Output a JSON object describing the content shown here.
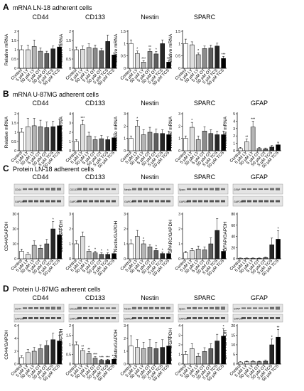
{
  "figure": {
    "colors": {
      "fills": [
        "#ffffff",
        "#dedede",
        "#b5b5b5",
        "#8c8c8c",
        "#5e5e5e",
        "#262626",
        "#000000"
      ],
      "stroke": "#000000",
      "blot_bg": "#e4e4e4",
      "blot_band": "#3a3a3a"
    }
  },
  "chart_data": [
    {
      "type": "bar",
      "panel": "A",
      "panel_label": "A",
      "panel_title": "mRNA LN-18 adherent cells",
      "title": "CD44",
      "ylabel": "Relative mRNA",
      "ylim": [
        0,
        2
      ],
      "yticks": [
        "0",
        "0.5",
        "1",
        "1.5",
        "2"
      ],
      "categories": [
        "Control",
        "5 µM LY",
        "50 µM LY",
        "5 µM OT",
        "50 µM OT",
        "5 µM TCS",
        "50 µM TCS"
      ],
      "values": [
        1.0,
        1.0,
        1.18,
        0.92,
        0.8,
        1.05,
        1.15
      ],
      "errors": [
        0.22,
        0.25,
        0.35,
        0.18,
        0.12,
        0.15,
        0.12
      ],
      "sig": [
        "",
        "",
        "",
        "",
        "",
        "",
        ""
      ]
    },
    {
      "type": "bar",
      "panel": "A",
      "title": "CD133",
      "ylabel": "Relative mRNA",
      "ylim": [
        0,
        2
      ],
      "yticks": [
        "0",
        "0.5",
        "1",
        "1.5",
        "2"
      ],
      "categories": [
        "Control",
        "5 µM LY",
        "50 µM LY",
        "5 µM OT",
        "50 µM OT",
        "5 µM TCS",
        "50 µM TCS"
      ],
      "values": [
        1.0,
        1.02,
        1.12,
        1.08,
        0.95,
        1.45,
        0.72
      ],
      "errors": [
        0.15,
        0.18,
        0.2,
        0.18,
        0.12,
        0.35,
        0.12
      ],
      "sig": [
        "",
        "",
        "",
        "",
        "",
        "",
        ""
      ]
    },
    {
      "type": "bar",
      "panel": "A",
      "title": "Nestin",
      "ylabel": "Relative mRNA",
      "ylim": [
        0,
        1.5
      ],
      "yticks": [
        "0",
        "0.5",
        "1",
        "1.5"
      ],
      "categories": [
        "Control",
        "5 µM LY",
        "50 µM LY",
        "5 µM OT",
        "50 µM OT",
        "5 µM TCS",
        "50 µM TCS"
      ],
      "values": [
        1.0,
        0.6,
        0.25,
        0.68,
        0.58,
        1.0,
        0.25
      ],
      "errors": [
        0.15,
        0.1,
        0.06,
        0.1,
        0.1,
        0.15,
        0.06
      ],
      "sig": [
        "",
        "*",
        "***",
        "**",
        "*",
        "",
        "***"
      ]
    },
    {
      "type": "bar",
      "panel": "A",
      "title": "SPARC",
      "ylabel": "Relative mRNA",
      "ylim": [
        0,
        1.5
      ],
      "yticks": [
        "0",
        "0.5",
        "1",
        "1.5"
      ],
      "categories": [
        "Control",
        "5 µM LY",
        "50 µM LY",
        "5 µM OT",
        "50 µM OT",
        "5 µM TCS",
        "50 µM TCS"
      ],
      "values": [
        1.0,
        0.95,
        0.55,
        0.8,
        0.82,
        0.9,
        0.4
      ],
      "errors": [
        0.18,
        0.12,
        0.08,
        0.1,
        0.12,
        0.12,
        0.08
      ],
      "sig": [
        "",
        "",
        "*",
        "",
        "",
        "",
        "***"
      ]
    },
    {
      "type": "bar",
      "panel": "B",
      "panel_label": "B",
      "panel_title": "mRNA U-87MG adherent cells",
      "title": "CD44",
      "ylabel": "Relative mRNA",
      "ylim": [
        0,
        2
      ],
      "yticks": [
        "0",
        "0.5",
        "1",
        "1.5",
        "2"
      ],
      "categories": [
        "Control",
        "5 µM LY",
        "50 µM LY",
        "5 µM OT",
        "50 µM OT",
        "5 µM TCS",
        "50 µM TCS"
      ],
      "values": [
        1.0,
        1.3,
        1.35,
        1.3,
        1.25,
        1.3,
        1.35
      ],
      "errors": [
        0.2,
        0.45,
        0.4,
        0.35,
        0.3,
        0.3,
        0.35
      ],
      "sig": [
        "",
        "",
        "",
        "",
        "",
        "",
        ""
      ]
    },
    {
      "type": "bar",
      "panel": "B",
      "title": "CD133",
      "ylabel": "Relative mRNA",
      "ylim": [
        0,
        4
      ],
      "yticks": [
        "0",
        "1",
        "2",
        "3",
        "4"
      ],
      "categories": [
        "Control",
        "5 µM LY",
        "50 µM LY",
        "5 µM OT",
        "50 µM OT",
        "5 µM TCS",
        "50 µM TCS"
      ],
      "values": [
        1.0,
        2.8,
        1.6,
        1.2,
        1.3,
        1.2,
        1.4
      ],
      "errors": [
        0.2,
        0.5,
        0.4,
        0.3,
        0.35,
        0.3,
        0.4
      ],
      "sig": [
        "",
        "***",
        "",
        "",
        "",
        "",
        ""
      ]
    },
    {
      "type": "bar",
      "panel": "B",
      "title": "Nestin",
      "ylabel": "Relative mRNA",
      "ylim": [
        0,
        3
      ],
      "yticks": [
        "0",
        "1",
        "2",
        "3"
      ],
      "categories": [
        "Control",
        "5 µM LY",
        "50 µM LY",
        "5 µM OT",
        "50 µM OT",
        "5 µM TCS",
        "50 µM TCS"
      ],
      "values": [
        1.0,
        2.0,
        1.3,
        1.5,
        1.4,
        1.4,
        1.3
      ],
      "errors": [
        0.2,
        0.45,
        0.4,
        0.4,
        0.35,
        0.3,
        0.3
      ],
      "sig": [
        "",
        "*",
        "",
        "",
        "",
        "",
        ""
      ]
    },
    {
      "type": "bar",
      "panel": "B",
      "title": "SPARC",
      "ylabel": "Relative mRNA",
      "ylim": [
        0,
        3
      ],
      "yticks": [
        "0",
        "1",
        "2",
        "3"
      ],
      "categories": [
        "Control",
        "5 µM LY",
        "50 µM LY",
        "5 µM OT",
        "50 µM OT",
        "5 µM TCS",
        "50 µM TCS"
      ],
      "values": [
        1.0,
        1.9,
        0.9,
        1.6,
        1.4,
        1.3,
        1.3
      ],
      "errors": [
        0.2,
        0.4,
        0.3,
        0.35,
        0.3,
        0.3,
        0.3
      ],
      "sig": [
        "",
        "*",
        "",
        "",
        "",
        "",
        ""
      ]
    },
    {
      "type": "bar",
      "panel": "B",
      "title": "GFAP",
      "ylabel": "Relative mRNA",
      "ylim": [
        0,
        5
      ],
      "yticks": [
        "0",
        "1",
        "2",
        "3",
        "4",
        "5"
      ],
      "categories": [
        "Control",
        "5 µM LY",
        "50 µM LY",
        "5 µM OT",
        "50 µM OT",
        "5 µM TCS",
        "50 µM TCS"
      ],
      "values": [
        0.3,
        1.2,
        3.2,
        0.3,
        0.25,
        0.5,
        0.8
      ],
      "errors": [
        0.15,
        0.4,
        0.8,
        0.15,
        0.12,
        0.2,
        0.35
      ],
      "sig": [
        "",
        "**",
        "***",
        "",
        "",
        "",
        ""
      ]
    },
    {
      "type": "bar",
      "panel": "C",
      "panel_label": "C",
      "panel_title": "Protein LN-18 adherent cells",
      "title": "CD44",
      "ylabel": "CD44/GAPDH",
      "ylim": [
        0,
        30
      ],
      "yticks": [
        "0",
        "10",
        "20",
        "30"
      ],
      "blot": [
        "CD44",
        "GAPDH"
      ],
      "categories": [
        "Control",
        "5 µM LY",
        "50 µM LY",
        "5 µM OT",
        "50 µM OT",
        "5 µM TCS",
        "50 µM TCS"
      ],
      "values": [
        5,
        3,
        9,
        7,
        10,
        20,
        16
      ],
      "errors": [
        1.5,
        1,
        3,
        2,
        3,
        5,
        4
      ],
      "sig": [
        "",
        "",
        "",
        "",
        "",
        "*",
        "*"
      ]
    },
    {
      "type": "bar",
      "panel": "C",
      "title": "CD133",
      "ylabel": "CD133/GAPDH",
      "ylim": [
        0,
        3
      ],
      "yticks": [
        "0",
        "1",
        "2",
        "3"
      ],
      "blot": [
        "CD133",
        "GAPDH"
      ],
      "categories": [
        "Control",
        "5 µM LY",
        "50 µM LY",
        "5 µM OT",
        "50 µM OT",
        "5 µM TCS",
        "50 µM TCS"
      ],
      "values": [
        1.0,
        1.5,
        0.5,
        0.4,
        0.3,
        0.3,
        0.35
      ],
      "errors": [
        0.2,
        0.3,
        0.15,
        0.1,
        0.1,
        0.1,
        0.1
      ],
      "sig": [
        "",
        "",
        "*",
        "*",
        "*",
        "*",
        "*"
      ]
    },
    {
      "type": "bar",
      "panel": "C",
      "title": "Nestin",
      "ylabel": "Nestin/GAPDH",
      "ylim": [
        0,
        3
      ],
      "yticks": [
        "0",
        "1",
        "2",
        "3"
      ],
      "blot": [
        "Nestin",
        "GAPDH"
      ],
      "categories": [
        "Control",
        "5 µM LY",
        "50 µM LY",
        "5 µM OT",
        "50 µM OT",
        "5 µM TCS",
        "50 µM TCS"
      ],
      "values": [
        1.0,
        1.5,
        1.0,
        0.8,
        0.55,
        0.35,
        0.35
      ],
      "errors": [
        0.25,
        0.4,
        0.2,
        0.15,
        0.15,
        0.1,
        0.1
      ],
      "sig": [
        "",
        "",
        "*",
        "",
        "*",
        "*",
        "**"
      ]
    },
    {
      "type": "bar",
      "panel": "C",
      "title": "SPARC",
      "ylabel": "SPARC/GAPDH",
      "ylim": [
        0,
        3
      ],
      "yticks": [
        "0",
        "1",
        "2",
        "3"
      ],
      "blot": [
        "Sparc",
        "GAPDH"
      ],
      "categories": [
        "Control",
        "5 µM LY",
        "50 µM LY",
        "5 µM OT",
        "50 µM OT",
        "5 µM TCS",
        "50 µM TCS"
      ],
      "values": [
        0.4,
        0.55,
        0.65,
        0.6,
        1.0,
        1.9,
        0.5
      ],
      "errors": [
        0.1,
        0.15,
        0.2,
        0.2,
        0.4,
        0.8,
        0.15
      ],
      "sig": [
        "",
        "",
        "",
        "",
        "",
        "",
        ""
      ]
    },
    {
      "type": "bar",
      "panel": "C",
      "title": "GFAP",
      "ylabel": "GFAP/GAPDH",
      "ylim": [
        0,
        80
      ],
      "yticks": [
        "0",
        "20",
        "40",
        "60",
        "80"
      ],
      "blot": [
        "GFAP",
        "GAPDH"
      ],
      "categories": [
        "Control",
        "5 µM LY",
        "50 µM LY",
        "5 µM OT",
        "50 µM OT",
        "5 µM TCS",
        "50 µM TCS"
      ],
      "values": [
        1,
        1,
        1,
        1,
        2,
        25,
        35
      ],
      "errors": [
        0.5,
        0.5,
        0.5,
        0.5,
        1,
        12,
        15
      ],
      "sig": [
        "",
        "",
        "",
        "",
        "",
        "",
        "*"
      ]
    },
    {
      "type": "bar",
      "panel": "D",
      "panel_label": "D",
      "panel_title": "Protein U-87MG adherent cells",
      "title": "CD44",
      "ylabel": "CD44/GAPDH",
      "ylim": [
        0,
        6
      ],
      "yticks": [
        "0",
        "2",
        "4",
        "6"
      ],
      "blot": [
        "CD44",
        "GAPDH"
      ],
      "categories": [
        "Control",
        "5 µM LY",
        "50 µM LY",
        "5 µM OT",
        "50 µM OT",
        "5 µM TCS",
        "50 µM TCS"
      ],
      "values": [
        1.0,
        1.8,
        2.0,
        2.4,
        2.9,
        3.8,
        3.6
      ],
      "errors": [
        0.3,
        0.5,
        0.6,
        0.6,
        0.7,
        1.0,
        0.9
      ],
      "sig": [
        "",
        "",
        "",
        "",
        "",
        "",
        "*"
      ]
    },
    {
      "type": "bar",
      "panel": "D",
      "title": "CD133",
      "ylabel": "CD133/GAPDH",
      "ylim": [
        0,
        2
      ],
      "yticks": [
        "0",
        "0.5",
        "1",
        "1.5",
        "2"
      ],
      "blot": [
        "CD133",
        "GAPDH"
      ],
      "categories": [
        "Control",
        "5 µM LY",
        "50 µM LY",
        "5 µM OT",
        "50 µM OT",
        "5 µM TCS",
        "50 µM TCS"
      ],
      "values": [
        1.0,
        0.7,
        0.55,
        0.3,
        0.2,
        0.2,
        0.25
      ],
      "errors": [
        0.15,
        0.1,
        0.1,
        0.08,
        0.05,
        0.05,
        0.05
      ],
      "sig": [
        "",
        "**",
        "**",
        "***",
        "***",
        "***",
        "***"
      ]
    },
    {
      "type": "bar",
      "panel": "D",
      "title": "Nestin",
      "ylabel": "Nestin/GAPDH",
      "ylim": [
        0,
        3
      ],
      "yticks": [
        "0",
        "1",
        "2",
        "3"
      ],
      "blot": [
        "Nestin",
        "GAPDH"
      ],
      "categories": [
        "Control",
        "5 µM LY",
        "50 µM LY",
        "5 µM OT",
        "50 µM OT",
        "5 µM TCS",
        "50 µM TCS"
      ],
      "values": [
        1.4,
        1.3,
        1.2,
        1.3,
        1.2,
        1.3,
        1.4
      ],
      "errors": [
        0.8,
        0.6,
        0.5,
        0.6,
        0.5,
        0.6,
        0.7
      ],
      "sig": [
        "",
        "",
        "",
        "",
        "",
        "",
        ""
      ]
    },
    {
      "type": "bar",
      "panel": "D",
      "title": "SPARC",
      "ylabel": "SPARC/GAPDH",
      "ylim": [
        0,
        4
      ],
      "yticks": [
        "0",
        "1",
        "2",
        "3",
        "4"
      ],
      "blot": [
        "Sparc",
        "GAPDH"
      ],
      "categories": [
        "Control",
        "5 µM LY",
        "50 µM LY",
        "5 µM OT",
        "50 µM OT",
        "5 µM TCS",
        "50 µM TCS"
      ],
      "values": [
        1.0,
        1.6,
        0.8,
        1.3,
        1.6,
        2.4,
        2.9
      ],
      "errors": [
        0.3,
        0.5,
        0.3,
        0.4,
        0.5,
        0.7,
        0.8
      ],
      "sig": [
        "",
        "",
        "",
        "",
        "",
        "",
        "*"
      ]
    },
    {
      "type": "bar",
      "panel": "D",
      "title": "GFAP",
      "ylabel": "GFAP/GAPDH",
      "ylim": [
        0,
        20
      ],
      "yticks": [
        "0",
        "5",
        "10",
        "15",
        "20"
      ],
      "blot": [
        "GFAP",
        "GAPDH"
      ],
      "categories": [
        "Control",
        "5 µM LY",
        "50 µM LY",
        "5 µM OT",
        "50 µM OT",
        "5 µM TCS",
        "50 µM TCS"
      ],
      "values": [
        1.0,
        1.2,
        1.3,
        1.2,
        1.5,
        10,
        14
      ],
      "errors": [
        0.3,
        0.3,
        0.4,
        0.3,
        0.5,
        3,
        4
      ],
      "sig": [
        "",
        "",
        "",
        "",
        "",
        "*",
        "**"
      ]
    }
  ]
}
